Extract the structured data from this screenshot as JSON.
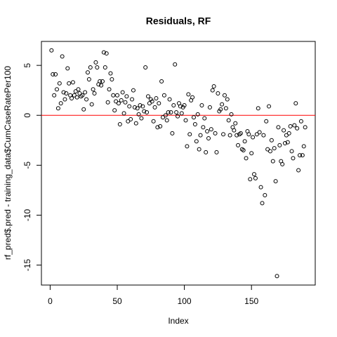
{
  "chart_data": {
    "type": "scatter",
    "title": "Residuals, RF",
    "xlabel": "Index",
    "ylabel": "rf_pred$.pred - training_data$CumCaseRatePer100",
    "x": [
      1,
      2,
      3,
      4,
      5,
      6,
      7,
      8,
      9,
      10,
      11,
      12,
      13,
      14,
      15,
      16,
      17,
      18,
      19,
      20,
      21,
      22,
      23,
      24,
      25,
      26,
      27,
      28,
      29,
      30,
      31,
      32,
      33,
      34,
      35,
      36,
      37,
      38,
      39,
      40,
      41,
      42,
      43,
      44,
      45,
      46,
      47,
      48,
      49,
      50,
      51,
      52,
      53,
      54,
      55,
      56,
      57,
      58,
      59,
      60,
      61,
      62,
      63,
      64,
      65,
      66,
      67,
      68,
      69,
      70,
      71,
      72,
      73,
      74,
      75,
      76,
      77,
      78,
      79,
      80,
      81,
      82,
      83,
      84,
      85,
      86,
      87,
      88,
      89,
      90,
      91,
      92,
      93,
      94,
      95,
      96,
      97,
      98,
      99,
      100,
      101,
      102,
      103,
      104,
      105,
      106,
      107,
      108,
      109,
      110,
      111,
      112,
      113,
      114,
      115,
      116,
      117,
      118,
      119,
      120,
      121,
      122,
      123,
      124,
      125,
      126,
      127,
      128,
      129,
      130,
      131,
      132,
      133,
      134,
      135,
      136,
      137,
      138,
      139,
      140,
      141,
      142,
      143,
      144,
      145,
      146,
      147,
      148,
      149,
      150,
      151,
      152,
      153,
      154,
      155,
      156,
      157,
      158,
      159,
      160,
      161,
      162,
      163,
      164,
      165,
      166,
      167,
      168,
      169,
      170,
      171,
      172,
      173,
      174,
      175,
      176,
      177,
      178,
      179,
      180,
      181,
      182,
      183,
      184,
      185,
      186,
      187,
      188,
      189,
      190
    ],
    "series": [
      {
        "color": "#000000",
        "values": [
          6.5,
          4.1,
          2.0,
          4.1,
          2.6,
          0.7,
          3.2,
          1.2,
          5.9,
          2.3,
          1.6,
          2.2,
          4.7,
          3.2,
          2.0,
          1.7,
          3.3,
          2.0,
          2.4,
          1.8,
          2.6,
          2.2,
          1.9,
          2.0,
          0.6,
          2.3,
          1.6,
          4.3,
          3.6,
          4.8,
          1.1,
          2.6,
          2.2,
          5.3,
          4.8,
          3.1,
          3.4,
          3.0,
          3.4,
          6.3,
          4.8,
          6.2,
          1.3,
          2.6,
          4.2,
          3.6,
          2.0,
          0.5,
          1.4,
          2.0,
          1.2,
          -0.9,
          1.5,
          2.3,
          0.2,
          1.3,
          1.9,
          -0.6,
          0.9,
          -0.4,
          1.6,
          2.5,
          0.8,
          -0.8,
          0.7,
          0.1,
          1.0,
          -0.3,
          0.9,
          0.4,
          4.8,
          0.3,
          1.9,
          1.2,
          1.6,
          1.4,
          -0.6,
          0.8,
          1.7,
          -1.2,
          1.2,
          -1.1,
          3.4,
          -0.2,
          2.0,
          0.0,
          -0.5,
          0.3,
          1.6,
          0.3,
          -1.8,
          1.0,
          5.1,
          0.3,
          -0.1,
          1.2,
          0.9,
          0.2,
          0.8,
          1.0,
          -0.5,
          -3.1,
          2.1,
          -1.9,
          1.5,
          1.8,
          -0.2,
          -0.9,
          -2.6,
          0.1,
          -3.4,
          -2.0,
          1.0,
          -1.2,
          -0.3,
          -3.7,
          -1.6,
          -2.3,
          0.8,
          -1.4,
          2.5,
          2.9,
          -1.8,
          -3.7,
          2.2,
          0.4,
          0.6,
          1.1,
          -1.9,
          2.0,
          0.7,
          1.6,
          -0.5,
          -2.0,
          0.1,
          -1.2,
          -1.5,
          -0.8,
          -2.0,
          -3.0,
          -1.9,
          -1.8,
          -3.4,
          -3.5,
          -2.6,
          -4.3,
          -1.6,
          -1.9,
          -6.4,
          -3.8,
          -2.2,
          -5.9,
          -6.3,
          -1.9,
          0.7,
          -1.7,
          -7.2,
          -8.8,
          -2.0,
          -8.0,
          -0.6,
          -3.4,
          0.9,
          -3.6,
          -2.5,
          -4.6,
          -3.3,
          -6.6,
          -16.1,
          -1.2,
          -3.0,
          -4.6,
          -4.9,
          -1.5,
          -2.8,
          -2.0,
          -2.7,
          -1.8,
          -1.1,
          -3.6,
          -4.3,
          -1.0,
          1.2,
          -1.3,
          -5.5,
          -4.0,
          -0.6,
          -4.0,
          -3.1,
          -1.2
        ]
      }
    ],
    "xlim": [
      -6.5,
      197.5
    ],
    "ylim": [
      -17,
      7.4
    ],
    "xticks": [
      0,
      50,
      100,
      150
    ],
    "yticks": [
      -15,
      -10,
      -5,
      0,
      5
    ],
    "hline": {
      "value": 0,
      "color": "#ff0000"
    }
  }
}
